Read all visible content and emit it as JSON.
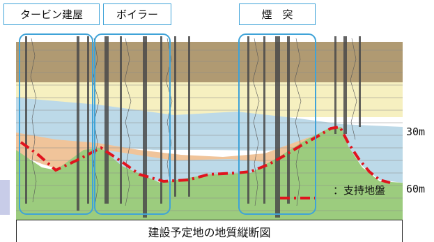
{
  "labels": {
    "turbine": "タービン建屋",
    "boiler": "ボイラー",
    "chimney": "煙　突"
  },
  "depth_markers": [
    "30m",
    "60m"
  ],
  "legend": {
    "text": "：支持地盤"
  },
  "caption": "建設予定地の地質縦断図",
  "colors": {
    "highlight_frame": "#3fa3d8",
    "support_layer_line": "#e0141e",
    "green_layer": "#9ccc7e",
    "blue_layer": "#bcd9e8",
    "orange_layer": "#f0c49a",
    "yellow_layer": "#f6f0c0",
    "brown_layer": "#b09a72"
  }
}
